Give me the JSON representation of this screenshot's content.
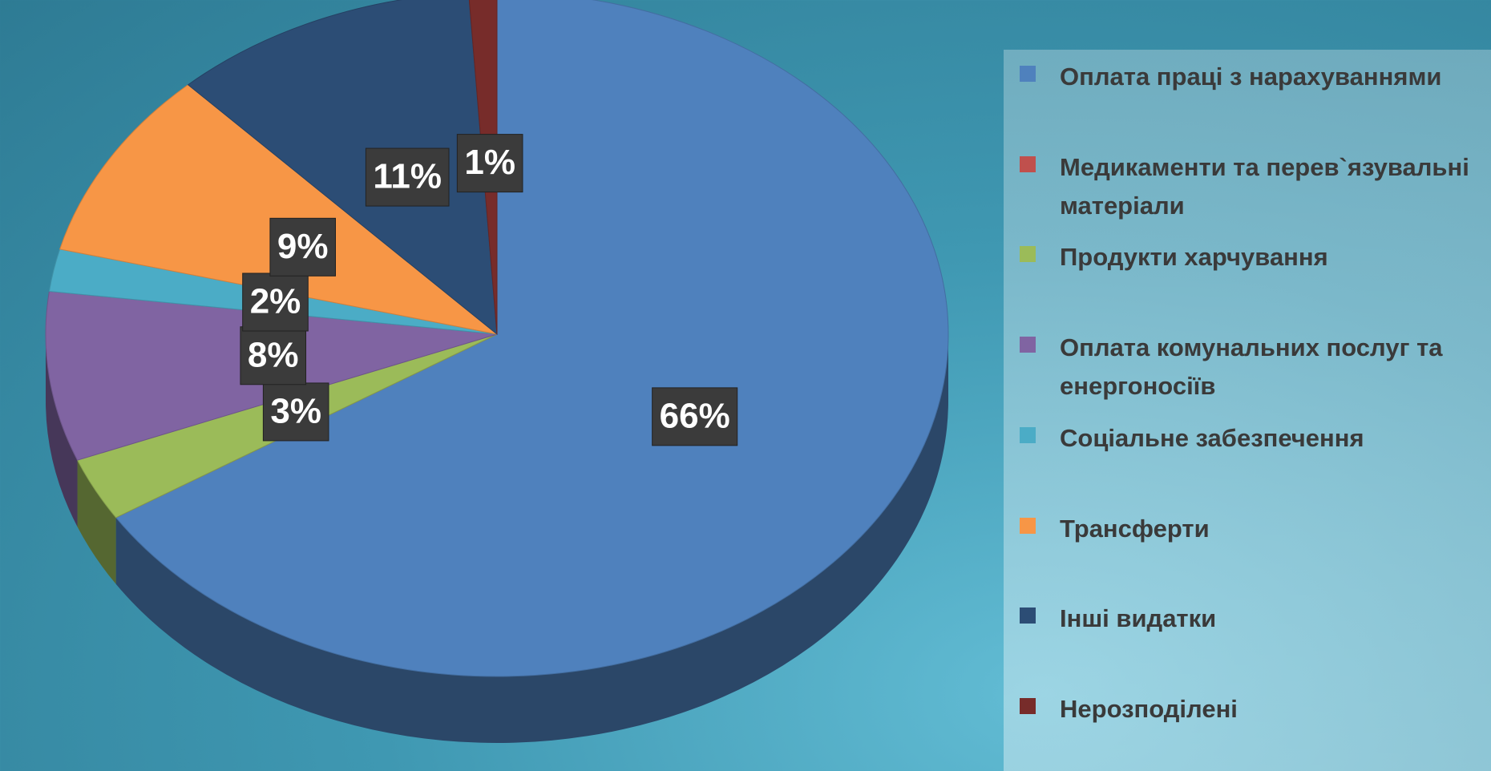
{
  "chart_data": {
    "type": "pie",
    "categories": [
      "Оплата праці з нарахуваннями",
      "Медикаменти та перев`язувальні матеріали",
      "Продукти харчування",
      "Оплата комунальних послуг та енергоносіїв",
      "Соціальне забезпечення",
      "Трансферти",
      "Інші видатки",
      "Нерозподілені"
    ],
    "values": [
      66,
      0,
      3,
      8,
      2,
      9,
      11,
      1
    ],
    "value_labels": [
      "66%",
      null,
      "3%",
      "8%",
      "2%",
      "9%",
      "11%",
      "1%"
    ],
    "colors": [
      "#4f81bd",
      "#c0504d",
      "#9bbb59",
      "#8064a2",
      "#4bacc6",
      "#f79646",
      "#2c4d75",
      "#772c2a"
    ],
    "legend": "right"
  }
}
